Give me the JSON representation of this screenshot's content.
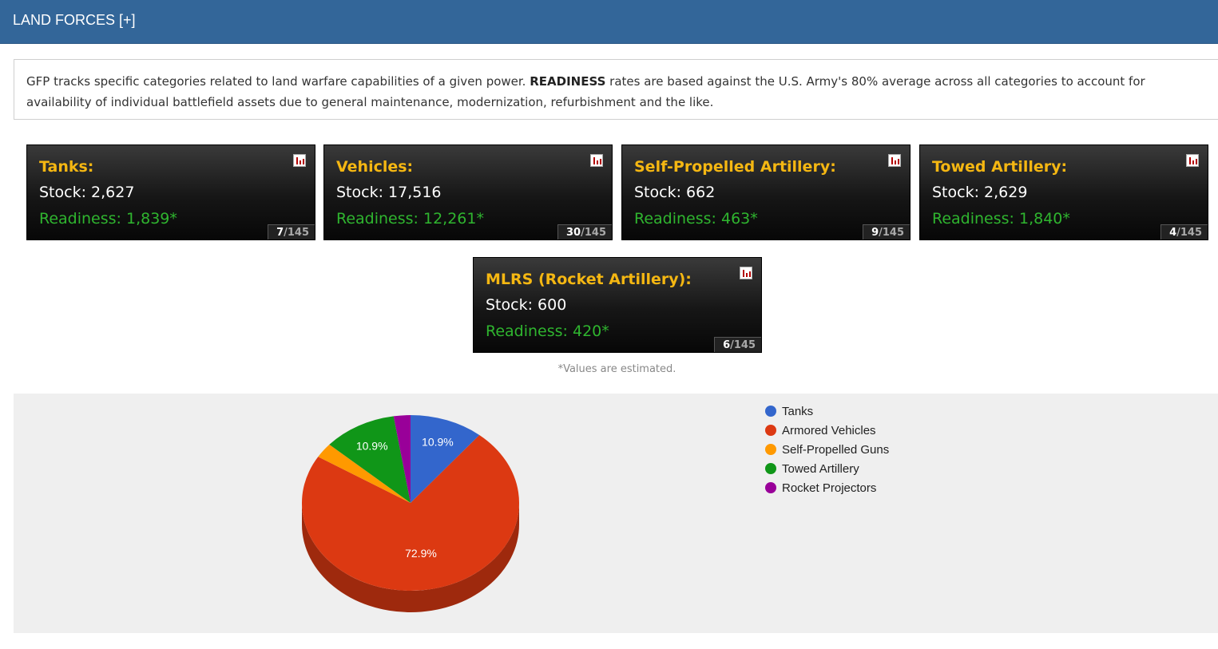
{
  "header": {
    "title": "LAND FORCES [+]"
  },
  "intro": {
    "text_before": "GFP tracks specific categories related to land warfare capabilities of a given power. ",
    "bold": "READINESS",
    "text_after": " rates are based against the U.S. Army's 80% average across all categories to account for availability of individual battlefield assets due to general maintenance, modernization, refurbishment and the like."
  },
  "cards": [
    {
      "title": "Tanks:",
      "stock": "Stock: 2,627",
      "readiness": "Readiness: 1,839*",
      "rank": "7",
      "rank_total": "/145",
      "icon": "bar-chart-icon"
    },
    {
      "title": "Vehicles:",
      "stock": "Stock: 17,516",
      "readiness": "Readiness: 12,261*",
      "rank": "30",
      "rank_total": "/145",
      "icon": "bar-chart-icon"
    },
    {
      "title": "Self-Propelled Artillery:",
      "stock": "Stock: 662",
      "readiness": "Readiness: 463*",
      "rank": "9",
      "rank_total": "/145",
      "icon": "bar-chart-icon"
    },
    {
      "title": "Towed Artillery:",
      "stock": "Stock: 2,629",
      "readiness": "Readiness: 1,840*",
      "rank": "4",
      "rank_total": "/145",
      "icon": "bar-chart-icon"
    },
    {
      "title": "MLRS (Rocket Artillery):",
      "stock": "Stock: 600",
      "readiness": "Readiness: 420*",
      "rank": "6",
      "rank_total": "/145",
      "icon": "bar-chart-icon"
    }
  ],
  "note": "*Values are estimated.",
  "chart_data": {
    "type": "pie",
    "style": "3d",
    "legend_position": "right",
    "series": [
      {
        "name": "Tanks",
        "value": 2627,
        "label": "10.9%",
        "color": "#3366cc"
      },
      {
        "name": "Armored Vehicles",
        "value": 17516,
        "label": "72.9%",
        "color": "#dc3912"
      },
      {
        "name": "Self-Propelled Guns",
        "value": 662,
        "label": "",
        "color": "#ff9900"
      },
      {
        "name": "Towed Artillery",
        "value": 2629,
        "label": "10.9%",
        "color": "#109618"
      },
      {
        "name": "Rocket Projectors",
        "value": 600,
        "label": "",
        "color": "#990099"
      }
    ]
  }
}
